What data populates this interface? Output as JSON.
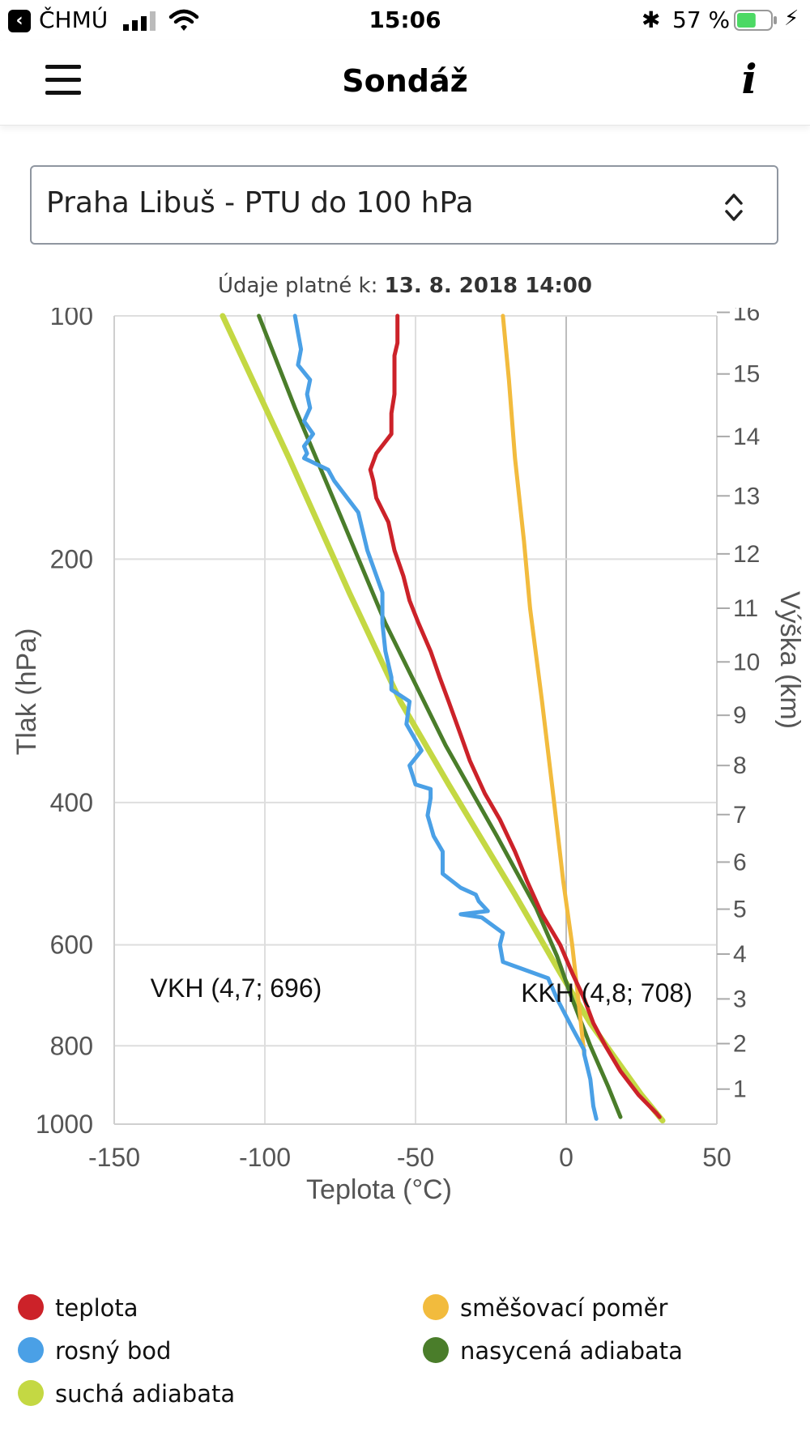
{
  "status_bar": {
    "carrier": "ČHMÚ",
    "time": "15:06",
    "battery_percent": "57 %",
    "battery_level": 0.57,
    "icons": [
      "back-app-icon",
      "cellular-signal-icon",
      "wifi-icon",
      "bluetooth-icon",
      "battery-icon",
      "charging-icon"
    ]
  },
  "nav": {
    "title": "Sondáž",
    "menu_icon": "hamburger-menu-icon",
    "info_icon": "info-icon",
    "info_label": "i"
  },
  "station_select": {
    "selected": "Praha Libuš - PTU do 100 hPa",
    "icon": "up-down-chevron-icon"
  },
  "valid_time": {
    "label": "Údaje platné k:",
    "value": "13. 8. 2018 14:00"
  },
  "chart_data": {
    "type": "line",
    "xlabel": "Teplota (°C)",
    "ylabel": "Tlak (hPa)",
    "y2label": "Výška (km)",
    "xlim": [
      -150,
      50
    ],
    "x_ticks": [
      -150,
      -100,
      -50,
      0,
      50
    ],
    "x_tick_labels": [
      "-150",
      "-100",
      "-50",
      "0",
      "50"
    ],
    "y_scale": "log",
    "ylim": [
      1000,
      100
    ],
    "y_ticks": [
      100,
      200,
      400,
      600,
      800,
      1000
    ],
    "y_tick_labels": [
      "100",
      "200",
      "400",
      "600",
      "800",
      "1000"
    ],
    "y2_ticks": [
      1,
      2,
      3,
      4,
      5,
      6,
      7,
      8,
      9,
      10,
      11,
      12,
      13,
      14,
      15,
      16
    ],
    "y2_tick_pressure": [
      905,
      795,
      700,
      616,
      542,
      474,
      414,
      360,
      312,
      268,
      230,
      197,
      167,
      141,
      118,
      99
    ],
    "grid": true,
    "legend_position": "bottom",
    "annotations": [
      {
        "text": "VKH (4,7; 696)",
        "x": -138,
        "p": 680
      },
      {
        "text": "KKH (4,8; 708)",
        "x": -15,
        "p": 690
      }
    ],
    "series": [
      {
        "name": "teplota",
        "color": "#cc2229",
        "x": [
          31,
          30,
          24,
          18,
          13,
          9,
          6,
          2,
          -2,
          -8,
          -13,
          -17,
          -22,
          -27,
          -32,
          -35,
          -39,
          -42,
          -45,
          -49,
          -52,
          -54,
          -57,
          -59,
          -63,
          -64,
          -65,
          -63,
          -58,
          -58,
          -57,
          -57,
          -57,
          -56,
          -56,
          -56
        ],
        "p": [
          980,
          970,
          920,
          860,
          800,
          750,
          700,
          650,
          600,
          550,
          500,
          460,
          420,
          390,
          355,
          330,
          300,
          280,
          260,
          240,
          225,
          210,
          195,
          180,
          168,
          160,
          155,
          148,
          140,
          132,
          125,
          118,
          112,
          108,
          104,
          100
        ]
      },
      {
        "name": "rosný bod",
        "color": "#4aa0e6",
        "x": [
          10,
          9,
          8,
          6,
          6,
          2,
          -3,
          -6,
          -21,
          -22,
          -21,
          -28,
          -35,
          -26,
          -29,
          -30,
          -35,
          -41,
          -41,
          -44,
          -46,
          -45,
          -45,
          -50,
          -52,
          -48,
          -53,
          -52,
          -58,
          -58,
          -58,
          -60,
          -61,
          -61,
          -66,
          -69,
          -77,
          -79,
          -87,
          -86,
          -87,
          -84,
          -87,
          -85,
          -86,
          -85,
          -89,
          -88,
          -89,
          -90
        ],
        "p": [
          985,
          950,
          880,
          820,
          810,
          760,
          700,
          660,
          630,
          600,
          580,
          555,
          550,
          545,
          530,
          520,
          510,
          490,
          460,
          440,
          415,
          395,
          385,
          380,
          360,
          345,
          320,
          300,
          290,
          285,
          280,
          260,
          240,
          220,
          195,
          175,
          160,
          155,
          150,
          148,
          145,
          140,
          135,
          130,
          125,
          120,
          115,
          110,
          105,
          100
        ]
      },
      {
        "name": "suchá adiabata",
        "color": "#c4d843",
        "x": [
          32,
          25,
          8,
          -2,
          -17,
          -39,
          -55,
          -72,
          -92,
          -114
        ],
        "p": [
          990,
          920,
          750,
          650,
          520,
          380,
          300,
          220,
          150,
          100
        ]
      },
      {
        "name": "směšovací poměr",
        "color": "#f2bb3d",
        "x": [
          6,
          4,
          2,
          -1,
          -4,
          -8,
          -12,
          -14,
          -17,
          -19,
          -21
        ],
        "p": [
          820,
          700,
          600,
          500,
          400,
          300,
          230,
          190,
          150,
          120,
          100
        ]
      },
      {
        "name": "nasycená adiabata",
        "color": "#4a7d2a",
        "x": [
          18,
          14,
          8,
          2,
          -3,
          -10,
          -23,
          -40,
          -60,
          -74,
          -90,
          -102
        ],
        "p": [
          980,
          900,
          800,
          700,
          620,
          540,
          440,
          340,
          240,
          180,
          130,
          100
        ]
      }
    ]
  }
}
